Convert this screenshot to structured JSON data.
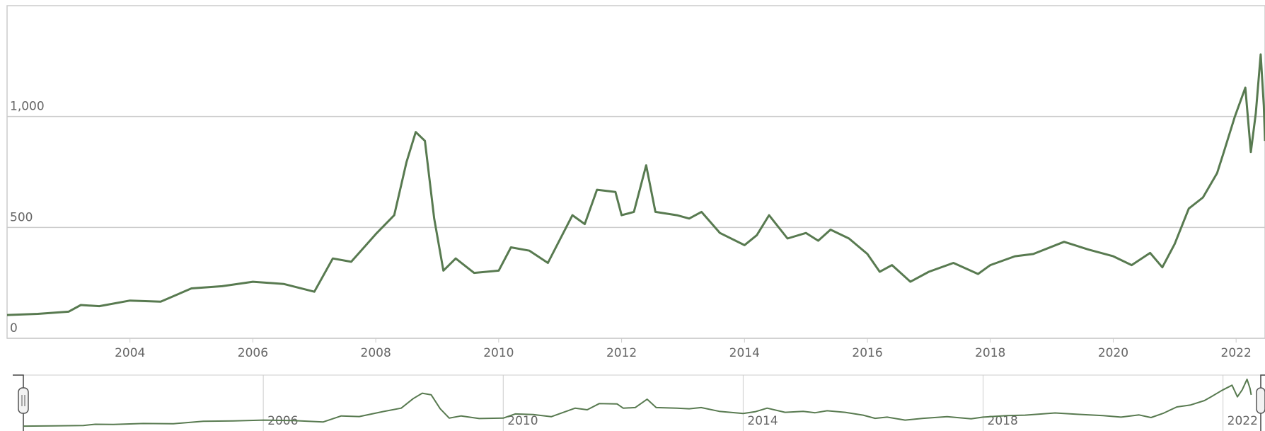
{
  "chart_data": {
    "type": "line",
    "x": [
      2002.0,
      2002.5,
      2003.0,
      2003.2,
      2003.5,
      2004.0,
      2004.5,
      2005.0,
      2005.5,
      2006.0,
      2006.5,
      2007.0,
      2007.3,
      2007.6,
      2008.0,
      2008.3,
      2008.5,
      2008.65,
      2008.8,
      2008.95,
      2009.1,
      2009.3,
      2009.6,
      2010.0,
      2010.2,
      2010.5,
      2010.8,
      2011.2,
      2011.4,
      2011.6,
      2011.9,
      2012.0,
      2012.2,
      2012.4,
      2012.55,
      2012.9,
      2013.1,
      2013.3,
      2013.6,
      2014.0,
      2014.2,
      2014.4,
      2014.7,
      2015.0,
      2015.2,
      2015.4,
      2015.7,
      2016.0,
      2016.2,
      2016.4,
      2016.7,
      2017.0,
      2017.4,
      2017.8,
      2018.0,
      2018.4,
      2018.7,
      2019.2,
      2019.6,
      2020.0,
      2020.3,
      2020.6,
      2020.8,
      2021.0,
      2021.23,
      2021.46,
      2021.69,
      2021.8,
      2021.98,
      2022.15,
      2022.24,
      2022.32,
      2022.4,
      2022.45,
      2022.47
    ],
    "values": [
      105,
      110,
      120,
      150,
      145,
      170,
      165,
      225,
      235,
      255,
      245,
      210,
      360,
      345,
      470,
      555,
      795,
      930,
      890,
      540,
      305,
      360,
      295,
      305,
      410,
      395,
      340,
      555,
      515,
      670,
      660,
      555,
      570,
      780,
      570,
      555,
      540,
      570,
      475,
      420,
      465,
      555,
      450,
      475,
      440,
      490,
      450,
      380,
      300,
      330,
      255,
      300,
      340,
      290,
      330,
      370,
      380,
      435,
      400,
      370,
      330,
      385,
      320,
      425,
      585,
      635,
      745,
      840,
      1000,
      1130,
      840,
      1015,
      1280,
      1050,
      890
    ],
    "color": "#587a50",
    "xlim": [
      2002.0,
      2022.47
    ],
    "xticks": [
      2004,
      2006,
      2008,
      2010,
      2012,
      2014,
      2016,
      2018,
      2020,
      2022
    ],
    "ylim": [
      0,
      1500
    ],
    "yticks": [
      0,
      500,
      {
        "value": 1000,
        "label": "1,000"
      }
    ],
    "grid": true,
    "navigator": {
      "xlim": [
        2002.0,
        2022.7
      ],
      "ylim": [
        0,
        1420
      ],
      "xticks": [
        2006,
        2010,
        2014,
        2018,
        2022
      ]
    }
  }
}
